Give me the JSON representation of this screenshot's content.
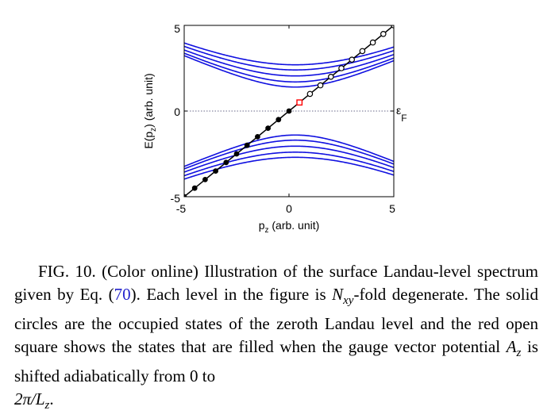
{
  "figure": {
    "ylabel_pre": "E(p",
    "ylabel_sub": "z",
    "ylabel_post": ") (arb. unit)",
    "xlabel_pre": "p",
    "xlabel_sub": "z",
    "xlabel_post": " (arb. unit)",
    "fermi_label": "ε",
    "fermi_sub": "F"
  },
  "chart_data": {
    "type": "line",
    "title": "",
    "xlabel": "p_z (arb. unit)",
    "ylabel": "E(p_z) (arb. unit)",
    "xlim": [
      -5,
      5
    ],
    "ylim": [
      -5,
      5
    ],
    "xticks": [
      "-5",
      "0",
      "5"
    ],
    "yticks": [
      "-5",
      "0",
      "5"
    ],
    "fermi_level": 0,
    "colors": {
      "landau": "#1010e0",
      "zeroth": "#000000",
      "square": "#ff0000",
      "fermi": "#6a6a8a"
    },
    "landau_levels_upper": [
      1.4,
      1.7,
      2.05,
      2.4,
      2.7
    ],
    "landau_levels_lower": [
      -1.4,
      -1.7,
      -2.05,
      -2.4,
      -2.7
    ],
    "zeroth_level": {
      "x": [
        -5,
        5
      ],
      "y": [
        -5,
        5
      ]
    },
    "occupied_states_x": [
      -5,
      -4.5,
      -4,
      -3.5,
      -3,
      -2.5,
      -2,
      -1.5,
      -1,
      -0.5,
      0
    ],
    "unoccupied_states_x": [
      1,
      1.5,
      2,
      2.5,
      3,
      3.5,
      4,
      4.5,
      5
    ],
    "added_state": {
      "x": 0.5,
      "y": 0.5
    }
  },
  "caption": {
    "fig_label": "FIG. 10.",
    "part1": " (Color online) Illustration of the surface Landau-level spectrum given by Eq. (",
    "eq_ref": "70",
    "part2": "). Each level in the figure is ",
    "nxy_base": "N",
    "nxy_sub": "xy",
    "part3": "-fold degenerate. The solid circles are the occupied states of the zeroth Landau level and the red open square shows the states that are filled when the gauge vector potential ",
    "az_base": "A",
    "az_sub": "z",
    "part4": " is shifted adiabatically from 0 to ",
    "end": "2π/L",
    "end_sub": "z",
    "end_post": "."
  }
}
